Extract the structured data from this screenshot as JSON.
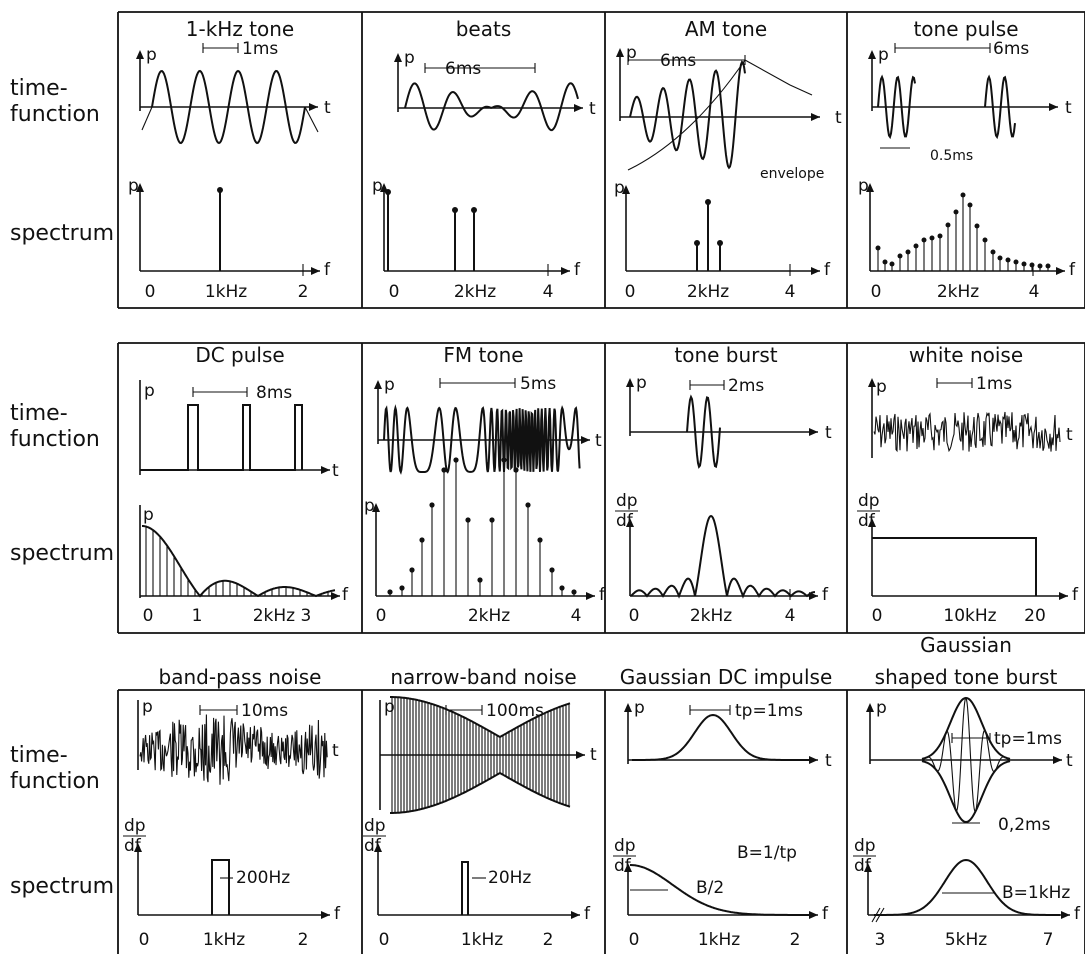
{
  "row_labels": {
    "time": "time-\nfunction",
    "spectrum": "spectrum"
  },
  "panels": [
    {
      "title": "1-kHz tone",
      "time_note": "1ms",
      "ticks": [
        "0",
        "1kHz",
        "2"
      ]
    },
    {
      "title": "beats",
      "time_note": "6ms",
      "ticks": [
        "0",
        "2kHz",
        "4"
      ]
    },
    {
      "title": "AM tone",
      "time_note": "6ms",
      "extra": "envelope",
      "ticks": [
        "0",
        "2kHz",
        "4"
      ]
    },
    {
      "title": "tone pulse",
      "time_note": "6ms",
      "extra": "0.5ms",
      "ticks": [
        "0",
        "2kHz",
        "4"
      ]
    },
    {
      "title": "DC pulse",
      "time_note": "8ms",
      "ticks": [
        "0",
        "1",
        "2kHz 3"
      ]
    },
    {
      "title": "FM tone",
      "time_note": "5ms",
      "ticks": [
        "0",
        "2kHz",
        "4"
      ]
    },
    {
      "title": "tone burst",
      "time_note": "2ms",
      "ticks": [
        "0",
        "2kHz",
        "4"
      ]
    },
    {
      "title": "white noise",
      "time_note": "1ms",
      "ticks": [
        "0",
        "10kHz",
        "20"
      ]
    },
    {
      "title": "band-pass noise",
      "time_note": "10ms",
      "extra": "200Hz",
      "ticks": [
        "0",
        "1kHz",
        "2"
      ]
    },
    {
      "title": "narrow-band noise",
      "time_note": "100ms",
      "extra": "20Hz",
      "ticks": [
        "0",
        "1kHz",
        "2"
      ]
    },
    {
      "title": "Gaussian DC impulse",
      "time_note": "tp=1ms",
      "extra": "B=1/tp",
      "extra2": "B/2",
      "ticks": [
        "0",
        "1kHz",
        "2"
      ]
    },
    {
      "title": "Gaussian\nshaped tone burst",
      "time_note": "tp=1ms",
      "extra": "0,2ms",
      "extra2": "B=1kHz",
      "ticks": [
        "3",
        "5kHz",
        "7"
      ]
    }
  ],
  "axis_symbols": {
    "p": "p",
    "t": "t",
    "f": "f",
    "dp": "dp",
    "df": "df"
  }
}
